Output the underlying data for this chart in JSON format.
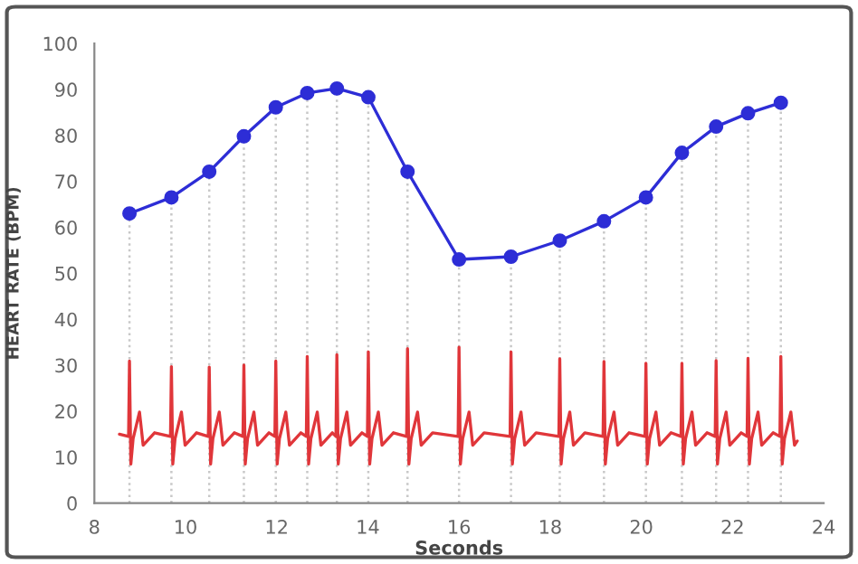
{
  "chart_data": {
    "type": "line",
    "xlabel": "Seconds",
    "ylabel": "HEART RATE (BPM)",
    "xlim": [
      8,
      24
    ],
    "xticks": [
      8,
      10,
      12,
      14,
      16,
      18,
      20,
      22,
      24
    ],
    "ylim": [
      0,
      100
    ],
    "yticks": [
      0,
      10,
      20,
      30,
      40,
      50,
      60,
      70,
      80,
      90,
      100
    ],
    "grid": false,
    "legend": false,
    "series": [
      {
        "color": "#2d2dd6",
        "marker": "circle",
        "x": [
          8.77,
          9.69,
          10.52,
          11.28,
          11.98,
          12.67,
          13.32,
          14.01,
          14.87,
          16.0,
          17.14,
          18.21,
          19.18,
          20.1,
          20.89,
          21.64,
          22.34,
          23.06
        ],
        "values": [
          63.0,
          66.5,
          72.1,
          79.8,
          86.1,
          89.2,
          90.2,
          88.3,
          72.1,
          53.0,
          53.6,
          57.1,
          61.3,
          66.5,
          76.2,
          81.9,
          84.8,
          87.1
        ]
      },
      {
        "color": "#e0363a",
        "marker": "none",
        "x": [
          8.55,
          8.75,
          8.77,
          8.8,
          8.85,
          8.99,
          9.07,
          9.32,
          9.67,
          9.69,
          9.72,
          9.77,
          9.91,
          9.99,
          10.24,
          10.5,
          10.52,
          10.55,
          10.6,
          10.74,
          10.82,
          11.07,
          11.26,
          11.28,
          11.31,
          11.36,
          11.5,
          11.58,
          11.83,
          11.96,
          11.98,
          12.01,
          12.06,
          12.2,
          12.28,
          12.53,
          12.65,
          12.67,
          12.7,
          12.75,
          12.89,
          12.97,
          13.22,
          13.3,
          13.32,
          13.35,
          13.4,
          13.54,
          13.62,
          13.87,
          13.99,
          14.01,
          14.04,
          14.09,
          14.23,
          14.31,
          14.56,
          14.85,
          14.87,
          14.9,
          14.95,
          15.09,
          15.17,
          15.42,
          15.98,
          16.0,
          16.03,
          16.08,
          16.22,
          16.3,
          16.55,
          17.12,
          17.14,
          17.17,
          17.22,
          17.36,
          17.44,
          17.69,
          18.19,
          18.21,
          18.24,
          18.29,
          18.43,
          18.51,
          18.76,
          19.16,
          19.18,
          19.21,
          19.26,
          19.4,
          19.48,
          19.73,
          20.08,
          20.1,
          20.13,
          20.18,
          20.32,
          20.4,
          20.65,
          20.87,
          20.89,
          20.92,
          20.97,
          21.11,
          21.19,
          21.44,
          21.62,
          21.64,
          21.67,
          21.72,
          21.86,
          21.94,
          22.19,
          22.32,
          22.34,
          22.37,
          22.42,
          22.56,
          22.64,
          22.89,
          23.04,
          23.06,
          23.09,
          23.14,
          23.28,
          23.36,
          23.42
        ],
        "values": [
          15,
          14.5,
          30.9,
          8.5,
          14,
          19.8,
          12.6,
          15.3,
          14.5,
          29.7,
          8.5,
          14,
          19.8,
          12.6,
          15.3,
          14.5,
          29.6,
          8.5,
          14,
          19.8,
          12.6,
          15.3,
          14.5,
          30.0,
          8.5,
          14,
          19.8,
          12.6,
          15.3,
          14.5,
          30.9,
          8.5,
          14,
          19.8,
          12.6,
          15.3,
          14.5,
          31.9,
          8.5,
          14,
          19.8,
          12.6,
          15.3,
          14.5,
          32.3,
          8.5,
          14,
          19.8,
          12.6,
          15.3,
          14.5,
          32.9,
          8.5,
          14,
          19.8,
          12.6,
          15.3,
          14.5,
          33.6,
          8.5,
          14,
          19.8,
          12.6,
          15.3,
          14.5,
          33.9,
          8.5,
          14,
          19.8,
          12.6,
          15.3,
          14.5,
          32.9,
          8.5,
          14,
          19.8,
          12.6,
          15.3,
          14.5,
          31.4,
          8.5,
          14,
          19.8,
          12.6,
          15.3,
          14.5,
          30.8,
          8.5,
          14,
          19.8,
          12.6,
          15.3,
          14.5,
          30.4,
          8.5,
          14,
          19.8,
          12.6,
          15.3,
          14.5,
          30.4,
          8.5,
          14,
          19.8,
          12.6,
          15.3,
          14.5,
          31.0,
          8.5,
          14,
          19.8,
          12.6,
          15.3,
          14.5,
          31.5,
          8.5,
          14,
          19.8,
          12.6,
          15.3,
          14.5,
          31.9,
          8.5,
          14,
          19.8,
          12.6,
          13.5
        ]
      }
    ],
    "ref_lines": [
      {
        "axis": "x",
        "value": 8.77,
        "color": "#c8c8c8",
        "line_style": "dotted"
      },
      {
        "axis": "x",
        "value": 9.69,
        "color": "#c8c8c8",
        "line_style": "dotted"
      },
      {
        "axis": "x",
        "value": 10.52,
        "color": "#c8c8c8",
        "line_style": "dotted"
      },
      {
        "axis": "x",
        "value": 11.28,
        "color": "#c8c8c8",
        "line_style": "dotted"
      },
      {
        "axis": "x",
        "value": 11.98,
        "color": "#c8c8c8",
        "line_style": "dotted"
      },
      {
        "axis": "x",
        "value": 12.67,
        "color": "#c8c8c8",
        "line_style": "dotted"
      },
      {
        "axis": "x",
        "value": 13.32,
        "color": "#c8c8c8",
        "line_style": "dotted"
      },
      {
        "axis": "x",
        "value": 14.01,
        "color": "#c8c8c8",
        "line_style": "dotted"
      },
      {
        "axis": "x",
        "value": 14.87,
        "color": "#c8c8c8",
        "line_style": "dotted"
      },
      {
        "axis": "x",
        "value": 16.0,
        "color": "#c8c8c8",
        "line_style": "dotted"
      },
      {
        "axis": "x",
        "value": 17.14,
        "color": "#c8c8c8",
        "line_style": "dotted"
      },
      {
        "axis": "x",
        "value": 18.21,
        "color": "#c8c8c8",
        "line_style": "dotted"
      },
      {
        "axis": "x",
        "value": 19.18,
        "color": "#c8c8c8",
        "line_style": "dotted"
      },
      {
        "axis": "x",
        "value": 20.1,
        "color": "#c8c8c8",
        "line_style": "dotted"
      },
      {
        "axis": "x",
        "value": 20.89,
        "color": "#c8c8c8",
        "line_style": "dotted"
      },
      {
        "axis": "x",
        "value": 21.64,
        "color": "#c8c8c8",
        "line_style": "dotted"
      },
      {
        "axis": "x",
        "value": 22.34,
        "color": "#c8c8c8",
        "line_style": "dotted"
      },
      {
        "axis": "x",
        "value": 23.06,
        "color": "#c8c8c8",
        "line_style": "dotted"
      }
    ]
  }
}
